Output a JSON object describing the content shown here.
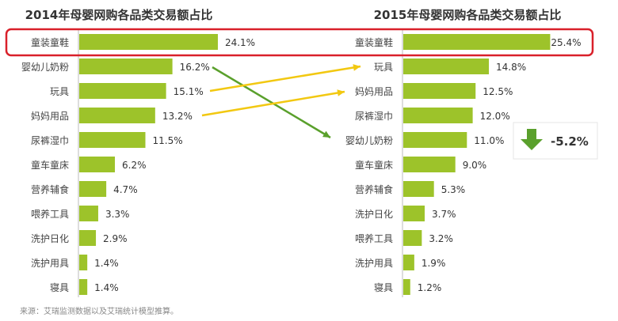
{
  "chart_data": [
    {
      "type": "bar",
      "orientation": "horizontal",
      "title": "2014年母婴网购各品类交易额占比",
      "categories": [
        "童装童鞋",
        "婴幼儿奶粉",
        "玩具",
        "妈妈用品",
        "尿裤湿巾",
        "童车童床",
        "营养辅食",
        "喂养工具",
        "洗护日化",
        "洗护用具",
        "寝具"
      ],
      "values": [
        24.1,
        16.2,
        15.1,
        13.2,
        11.5,
        6.2,
        4.7,
        3.3,
        2.9,
        1.4,
        1.4
      ],
      "labels": [
        "24.1%",
        "16.2%",
        "15.1%",
        "13.2%",
        "11.5%",
        "6.2%",
        "4.7%",
        "3.3%",
        "2.9%",
        "1.4%",
        "1.4%"
      ],
      "color": "#9dc32a"
    },
    {
      "type": "bar",
      "orientation": "horizontal",
      "title": "2015年母婴网购各品类交易额占比",
      "categories": [
        "童装童鞋",
        "玩具",
        "妈妈用品",
        "尿裤湿巾",
        "婴幼儿奶粉",
        "童车童床",
        "营养辅食",
        "洗护日化",
        "喂养工具",
        "洗护用具",
        "寝具"
      ],
      "values": [
        25.4,
        14.8,
        12.5,
        12.0,
        11.0,
        9.0,
        5.3,
        3.7,
        3.2,
        1.9,
        1.2
      ],
      "labels": [
        "25.4%",
        "14.8%",
        "12.5%",
        "12.0%",
        "11.0%",
        "9.0%",
        "5.3%",
        "3.7%",
        "3.2%",
        "1.9%",
        "1.2%"
      ],
      "color": "#9dc32a"
    }
  ],
  "annotations": {
    "highlight_color": "#d9202a",
    "up_arrow_color": "#f2c811",
    "down_arrow_color": "#5aa02c",
    "change_label": "-5.2%"
  },
  "source": "来源：艾瑞监测数据以及艾瑞统计模型推算。"
}
